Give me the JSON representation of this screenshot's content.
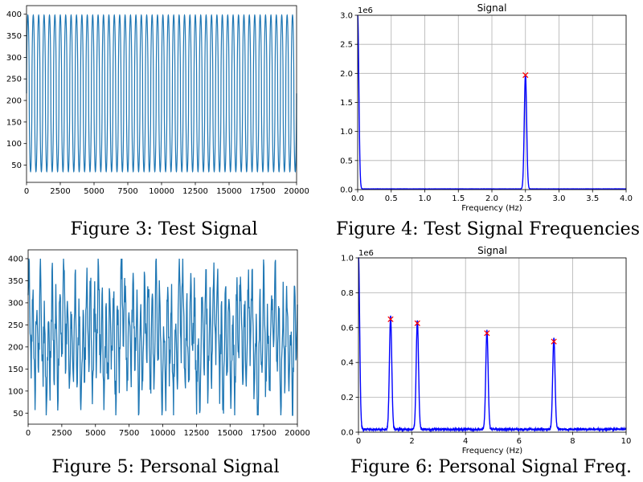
{
  "figures": [
    {
      "caption": "Figure 3: Test Signal"
    },
    {
      "caption": "Figure 4: Test Signal Frequencies"
    },
    {
      "caption": "Figure 5: Personal Signal"
    },
    {
      "caption": "Figure 6: Personal Signal Freq."
    }
  ],
  "colors": {
    "signal": "#1f77b4",
    "spectrum": "#0000ff",
    "peak_marker": "#ff0000",
    "grid": "#b0b0b0"
  },
  "chart_data": [
    {
      "type": "line",
      "title": "",
      "xlabel": "",
      "ylabel": "",
      "xlim": [
        0,
        20000
      ],
      "ylim": [
        10,
        420
      ],
      "xticks": [
        0,
        2500,
        5000,
        7500,
        10000,
        12500,
        15000,
        17500,
        20000
      ],
      "yticks": [
        50,
        100,
        150,
        200,
        250,
        300,
        350,
        400
      ],
      "grid": false,
      "series": [
        {
          "waveform": "periodic",
          "cycles": 50,
          "min": 35,
          "max": 398,
          "shelf_high": 345,
          "shelf_low": 75
        }
      ]
    },
    {
      "type": "line",
      "title": "Signal",
      "xlabel": "Frequency (Hz)",
      "ylabel": "",
      "offset_text": "1e6",
      "xlim": [
        0,
        4
      ],
      "ylim": [
        0,
        3.0
      ],
      "xticks": [
        0,
        0.5,
        1.0,
        1.5,
        2.0,
        2.5,
        3.0,
        3.5,
        4.0
      ],
      "yticks": [
        0.0,
        0.5,
        1.0,
        1.5,
        2.0,
        2.5,
        3.0
      ],
      "grid": true,
      "series": [
        {
          "peaks": [
            {
              "x": 0.0,
              "y": 3.0
            },
            {
              "x": 2.5,
              "y": 1.97
            }
          ],
          "baseline": 0.01
        }
      ],
      "markers": [
        {
          "x": 2.5,
          "y": 1.97
        }
      ]
    },
    {
      "type": "line",
      "title": "",
      "xlabel": "",
      "ylabel": "",
      "xlim": [
        0,
        20000
      ],
      "ylim": [
        25,
        420
      ],
      "xticks": [
        0,
        2500,
        5000,
        7500,
        10000,
        12500,
        15000,
        17500,
        20000
      ],
      "yticks": [
        50,
        100,
        150,
        200,
        250,
        300,
        350,
        400
      ],
      "grid": false,
      "series": [
        {
          "waveform": "irregular",
          "min": 45,
          "max": 400
        }
      ]
    },
    {
      "type": "line",
      "title": "Signal",
      "xlabel": "Frequency (Hz)",
      "ylabel": "",
      "offset_text": "1e6",
      "xlim": [
        0,
        10
      ],
      "ylim": [
        0,
        1.0
      ],
      "xticks": [
        0,
        2,
        4,
        6,
        8,
        10
      ],
      "yticks": [
        0.0,
        0.2,
        0.4,
        0.6,
        0.8,
        1.0
      ],
      "grid": true,
      "series": [
        {
          "peaks": [
            {
              "x": 0.0,
              "y": 1.0
            },
            {
              "x": 1.2,
              "y": 0.648
            },
            {
              "x": 2.2,
              "y": 0.625
            },
            {
              "x": 4.8,
              "y": 0.568
            },
            {
              "x": 7.3,
              "y": 0.52
            }
          ],
          "baseline": 0.01
        }
      ],
      "markers": [
        {
          "x": 1.2,
          "y": 0.648
        },
        {
          "x": 2.2,
          "y": 0.625
        },
        {
          "x": 4.8,
          "y": 0.568
        },
        {
          "x": 7.3,
          "y": 0.52
        }
      ]
    }
  ]
}
